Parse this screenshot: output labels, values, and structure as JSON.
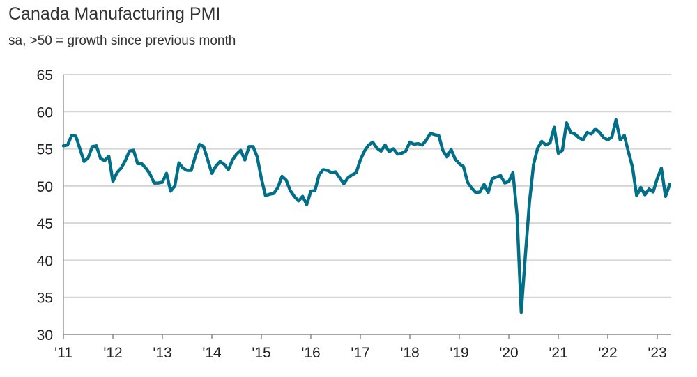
{
  "chart_data": {
    "type": "line",
    "title": "Canada Manufacturing PMI",
    "subtitle": "sa, >50 = growth since previous month",
    "xlabel": "",
    "ylabel": "",
    "ylim": [
      30,
      65
    ],
    "yticks": [
      30,
      35,
      40,
      45,
      50,
      55,
      60,
      65
    ],
    "xticks": [
      "'11",
      "'12",
      "'13",
      "'14",
      "'15",
      "'16",
      "'17",
      "'18",
      "'19",
      "'20",
      "'21",
      "'22",
      "'23"
    ],
    "x_start": "2011-01",
    "x_end": "2023-04",
    "frequency": "monthly",
    "grid": true,
    "line_color": "#006f87",
    "series": [
      {
        "values": [
          55.4,
          55.5,
          56.8,
          56.7,
          55.0,
          53.3,
          53.8,
          55.3,
          55.4,
          53.7,
          53.4,
          54.0,
          50.6,
          51.8,
          52.4,
          53.4,
          54.7,
          54.8,
          53.0,
          53.0,
          52.4,
          51.6,
          50.4,
          50.4,
          50.5,
          51.7,
          49.3,
          50.0,
          53.1,
          52.4,
          52.1,
          52.1,
          54.0,
          55.6,
          55.3,
          53.5,
          51.7,
          52.7,
          53.3,
          52.9,
          52.2,
          53.5,
          54.3,
          54.8,
          53.5,
          55.3,
          55.3,
          53.9,
          51.0,
          48.7,
          48.9,
          49.0,
          49.8,
          51.3,
          50.8,
          49.4,
          48.6,
          48.0,
          48.6,
          47.5,
          49.3,
          49.4,
          51.5,
          52.2,
          52.1,
          51.8,
          51.9,
          51.1,
          50.3,
          51.1,
          51.5,
          51.8,
          53.5,
          54.7,
          55.5,
          55.9,
          55.1,
          54.7,
          55.5,
          54.6,
          55.0,
          54.3,
          54.4,
          54.7,
          55.9,
          55.6,
          55.7,
          55.5,
          56.2,
          57.1,
          56.9,
          56.8,
          54.8,
          53.9,
          54.9,
          53.6,
          53.0,
          52.6,
          50.5,
          49.7,
          49.1,
          49.2,
          50.2,
          49.1,
          51.0,
          51.2,
          51.4,
          50.4,
          50.6,
          51.8,
          46.1,
          33.0,
          40.6,
          47.8,
          52.9,
          55.1,
          56.0,
          55.5,
          55.8,
          57.9,
          54.4,
          54.8,
          58.5,
          57.2,
          57.0,
          56.5,
          56.2,
          57.2,
          57.0,
          57.7,
          57.2,
          56.5,
          56.2,
          56.6,
          58.9,
          56.2,
          56.8,
          54.6,
          52.5,
          48.7,
          49.8,
          48.8,
          49.6,
          49.2,
          51.0,
          52.4,
          48.6,
          50.2
        ]
      }
    ]
  }
}
